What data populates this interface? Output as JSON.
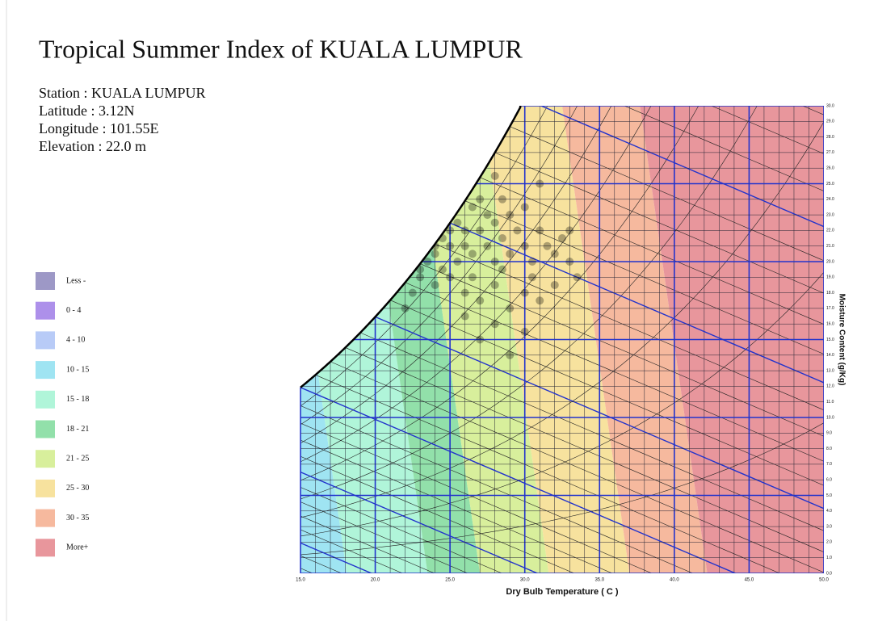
{
  "chart_data": {
    "type": "psychrometric",
    "title": "Tropical Summer Index of KUALA LUMPUR",
    "station_info": [
      "Station : KUALA LUMPUR",
      "Latitude  : 3.12N",
      "Longitude : 101.55E",
      "Elevation : 22.0 m"
    ],
    "x_label": "Dry Bulb Temperature ( C )",
    "y_label": "Moisture Content (g/Kg)",
    "xlim": [
      15,
      50
    ],
    "ylim": [
      0,
      30
    ],
    "xticks": [
      {
        "value": 15,
        "label": "15.0"
      },
      {
        "value": 20,
        "label": "20.0"
      },
      {
        "value": 25,
        "label": "25.0"
      },
      {
        "value": 30,
        "label": "30.0"
      },
      {
        "value": 35,
        "label": "35.0"
      },
      {
        "value": 40,
        "label": "40.0"
      },
      {
        "value": 45,
        "label": "45.0"
      },
      {
        "value": 50,
        "label": "50.0"
      }
    ],
    "yticks": [
      {
        "value": 0,
        "label": "0.0"
      },
      {
        "value": 1,
        "label": "1.0"
      },
      {
        "value": 2,
        "label": "2.0"
      },
      {
        "value": 3,
        "label": "3.0"
      },
      {
        "value": 4,
        "label": "4.0"
      },
      {
        "value": 5,
        "label": "5.0"
      },
      {
        "value": 6,
        "label": "6.0"
      },
      {
        "value": 7,
        "label": "7.0"
      },
      {
        "value": 8,
        "label": "8.0"
      },
      {
        "value": 9,
        "label": "9.0"
      },
      {
        "value": 10,
        "label": "10.0"
      },
      {
        "value": 11,
        "label": "11.0"
      },
      {
        "value": 12,
        "label": "12.0"
      },
      {
        "value": 13,
        "label": "13.0"
      },
      {
        "value": 14,
        "label": "14.0"
      },
      {
        "value": 15,
        "label": "15.0"
      },
      {
        "value": 16,
        "label": "16.0"
      },
      {
        "value": 17,
        "label": "17.0"
      },
      {
        "value": 18,
        "label": "18.0"
      },
      {
        "value": 19,
        "label": "19.0"
      },
      {
        "value": 20,
        "label": "20.0"
      },
      {
        "value": 21,
        "label": "21.0"
      },
      {
        "value": 22,
        "label": "22.0"
      },
      {
        "value": 23,
        "label": "23.0"
      },
      {
        "value": 24,
        "label": "24.0"
      },
      {
        "value": 25,
        "label": "25.0"
      },
      {
        "value": 26,
        "label": "26.0"
      },
      {
        "value": 27,
        "label": "27.0"
      },
      {
        "value": 28,
        "label": "28.0"
      },
      {
        "value": 29,
        "label": "29.0"
      },
      {
        "value": 30,
        "label": "30.0"
      }
    ],
    "grid": true,
    "legend": [
      {
        "label": "Less -",
        "color": "#9d98c6"
      },
      {
        "label": "0 - 4",
        "color": "#ad90ea"
      },
      {
        "label": "4 - 10",
        "color": "#b8cbf7"
      },
      {
        "label": "10 - 15",
        "color": "#9fe4f2"
      },
      {
        "label": "15 - 18",
        "color": "#b0f5d9"
      },
      {
        "label": "18 - 21",
        "color": "#92e0aa"
      },
      {
        "label": "21 - 25",
        "color": "#d8ef9c"
      },
      {
        "label": "25 - 30",
        "color": "#f7e29e"
      },
      {
        "label": "30 - 35",
        "color": "#f6b99e"
      },
      {
        "label": "More+",
        "color": "#e8969c"
      }
    ],
    "points": {
      "color": "#000000",
      "x": [
        23,
        23.5,
        24,
        24,
        24.5,
        25,
        25,
        25.5,
        25.5,
        26,
        26,
        26.5,
        26.5,
        27,
        27,
        27.5,
        27.5,
        28,
        28,
        28.5,
        28.5,
        29,
        29,
        29.5,
        30,
        30,
        30.5,
        31,
        31.5,
        32,
        32.5,
        33,
        24,
        25,
        26,
        27,
        28,
        29,
        30,
        31,
        32,
        33.5,
        26,
        28,
        30,
        29,
        31,
        28,
        22.5,
        23,
        24.5,
        26.5,
        28.5,
        30.5,
        27,
        22,
        33
      ],
      "y": [
        19,
        20,
        20.5,
        21,
        21.5,
        22,
        21,
        20,
        22.5,
        22,
        21,
        23.5,
        20.5,
        22,
        24,
        21,
        23,
        22.5,
        20,
        24,
        21.5,
        23,
        20.5,
        22,
        21,
        23.5,
        20,
        22,
        21,
        20.5,
        21.5,
        20,
        18.5,
        19,
        18,
        17.5,
        18.5,
        17,
        18,
        17.5,
        18.5,
        19,
        16.5,
        16,
        15.5,
        14,
        25,
        25.5,
        18,
        19.5,
        19.5,
        19,
        19.5,
        19,
        15,
        17,
        22
      ]
    }
  }
}
